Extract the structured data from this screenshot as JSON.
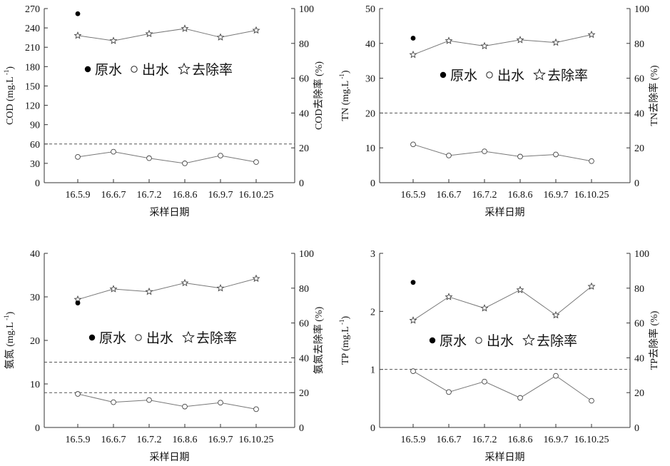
{
  "figure": {
    "xlabel": "采样日期",
    "categories": [
      "16.5.9",
      "16.6.7",
      "16.7.2",
      "16.8.6",
      "16.9.7",
      "16.10.25"
    ],
    "legend": [
      {
        "marker": "filled-circle",
        "label": "原水"
      },
      {
        "marker": "open-circle",
        "label": "出水"
      },
      {
        "marker": "open-star",
        "label": "去除率"
      }
    ],
    "colors": {
      "axis": "#333333",
      "line": "#777777",
      "raw_marker": "#000000",
      "reference_line": "#555555"
    }
  },
  "chart_data": [
    {
      "type": "line",
      "position": "top-left",
      "ylabel_left": "COD (mg.L⁻¹)",
      "ylabel_right": "COD去除率 (%)",
      "ylim_left": [
        0,
        270
      ],
      "yticks_left": [
        0,
        30,
        60,
        90,
        120,
        150,
        180,
        210,
        240,
        270
      ],
      "ylim_right": [
        0,
        100
      ],
      "yticks_right": [
        0,
        20,
        40,
        60,
        80,
        100
      ],
      "raw_water": [
        {
          "x": "16.5.9",
          "y": 262
        }
      ],
      "effluent": [
        40,
        48,
        38,
        30,
        42,
        32
      ],
      "removal_rate": [
        84.5,
        81.5,
        85.5,
        88.5,
        83.5,
        87.5
      ],
      "reference_lines_left": [
        60
      ],
      "legend_placement": "center-left"
    },
    {
      "type": "line",
      "position": "top-right",
      "ylabel_left": "TN (mg.L⁻¹)",
      "ylabel_right": "TN去除率 (%)",
      "ylim_left": [
        0,
        50
      ],
      "yticks_left": [
        0,
        10,
        20,
        30,
        40,
        50
      ],
      "ylim_right": [
        0,
        100
      ],
      "yticks_right": [
        0,
        20,
        40,
        60,
        80,
        100
      ],
      "raw_water": [
        {
          "x": "16.5.9",
          "y": 41.5
        }
      ],
      "effluent": [
        11.0,
        7.8,
        9.0,
        7.5,
        8.1,
        6.2
      ],
      "removal_rate": [
        73.5,
        81.5,
        78.5,
        82,
        80.5,
        85
      ],
      "reference_lines_left": [
        20
      ],
      "legend_placement": "center"
    },
    {
      "type": "line",
      "position": "bottom-left",
      "ylabel_left": "氨氮 (mg.L⁻¹)",
      "ylabel_right": "氨氮去除率 (%)",
      "ylim_left": [
        0,
        40
      ],
      "yticks_left": [
        0,
        10,
        20,
        30,
        40
      ],
      "ylim_right": [
        0,
        100
      ],
      "yticks_right": [
        0,
        20,
        40,
        60,
        80,
        100
      ],
      "raw_water": [
        {
          "x": "16.5.9",
          "y": 28.6
        }
      ],
      "effluent": [
        7.7,
        5.8,
        6.3,
        4.8,
        5.7,
        4.2
      ],
      "removal_rate": [
        73.5,
        79.5,
        78,
        83,
        80,
        85.5
      ],
      "reference_lines_left": [
        15,
        8
      ],
      "legend_placement": "center"
    },
    {
      "type": "line",
      "position": "bottom-right",
      "ylabel_left": "TP (mg.L⁻¹)",
      "ylabel_right": "TP去除率 (%)",
      "ylim_left": [
        0,
        3
      ],
      "yticks_left": [
        0,
        1,
        2,
        3
      ],
      "ylim_right": [
        0,
        100
      ],
      "yticks_right": [
        0,
        20,
        40,
        60,
        80,
        100
      ],
      "raw_water": [
        {
          "x": "16.5.9",
          "y": 2.5
        }
      ],
      "effluent": [
        0.97,
        0.61,
        0.79,
        0.51,
        0.89,
        0.46
      ],
      "removal_rate": [
        61.5,
        75,
        68.5,
        79,
        64.5,
        81
      ],
      "reference_lines_left": [
        1
      ],
      "legend_placement": "center"
    }
  ]
}
